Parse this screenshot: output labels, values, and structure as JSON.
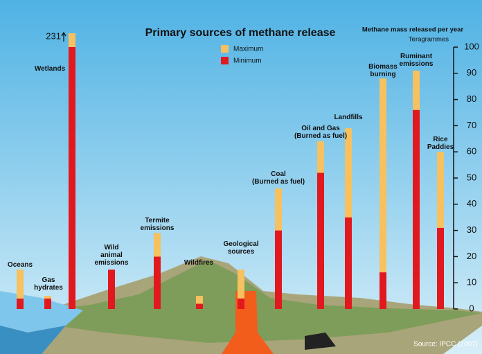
{
  "chart_data": {
    "type": "range-bar",
    "title": "Primary sources of methane release",
    "y_axis_title": "Methane mass released per year",
    "y_axis_unit": "Teragrammes",
    "source": "Source: IPCC (2007)",
    "categories": [
      "Oceans",
      "Gas\nhydrates",
      "Wetlands",
      "Wild\nanimal\nemissions",
      "Termite\nemissions",
      "Wildfires",
      "Geological\nsources",
      "Coal\n(Burned as fuel)",
      "Oil and Gas\n(Burned as fuel)",
      "Landfills",
      "Biomass\nburning",
      "Ruminant\nemissions",
      "Rice\nPaddies"
    ],
    "series": [
      {
        "name": "Maximum",
        "color": "#f6c15e",
        "values": [
          15,
          5,
          231,
          15,
          29,
          5,
          15,
          46,
          64,
          69,
          88,
          91,
          60
        ],
        "value_labels": [
          null,
          null,
          "231",
          null,
          null,
          null,
          null,
          null,
          null,
          null,
          null,
          null,
          null
        ]
      },
      {
        "name": "Minimum",
        "color": "#e2181f",
        "values": [
          4,
          4,
          100,
          15,
          20,
          2,
          4,
          30,
          52,
          35,
          14,
          76,
          31
        ]
      }
    ],
    "ylim": [
      0,
      100
    ],
    "yticks": [
      0,
      10,
      20,
      30,
      40,
      50,
      60,
      70,
      80,
      90,
      100
    ]
  }
}
